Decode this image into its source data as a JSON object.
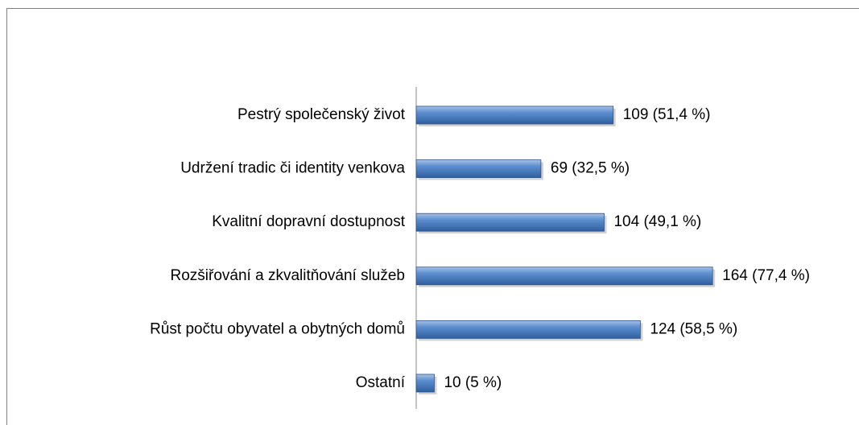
{
  "chart_data": {
    "type": "bar",
    "orientation": "horizontal",
    "categories": [
      "Pestrý společenský život",
      "Udržení tradic či identity venkova",
      "Kvalitní dopravní dostupnost",
      "Rozšiřování a zkvalitňování služeb",
      "Růst počtu obyvatel a obytných domů",
      "Ostatní"
    ],
    "values": [
      109,
      69,
      104,
      164,
      124,
      10
    ],
    "value_labels": [
      "109 (51,4 %)",
      "69 (32,5 %)",
      "104 (49,1 %)",
      "164 (77,4 %)",
      "124 (58,5 %)",
      "10 (5 %)"
    ],
    "color": "#4f81bd"
  }
}
